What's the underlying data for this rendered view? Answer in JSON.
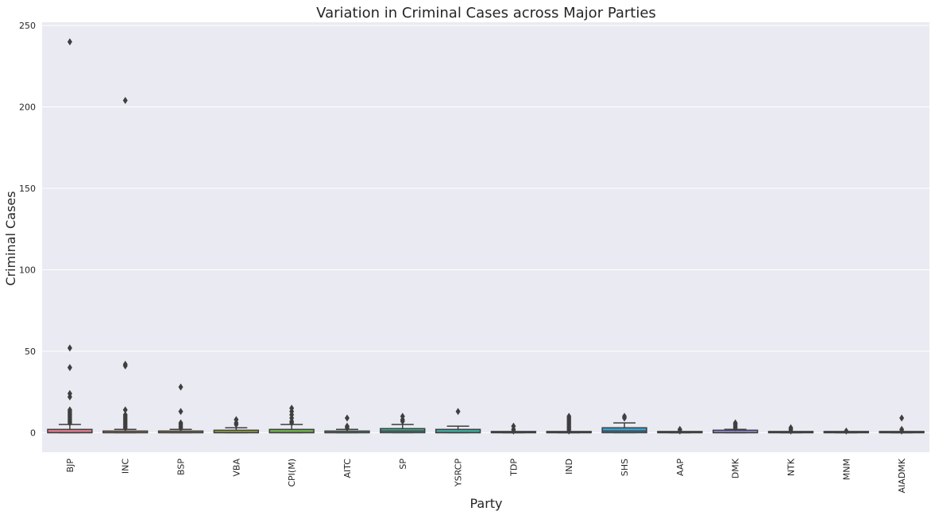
{
  "chart_data": {
    "type": "box",
    "title": "Variation in Criminal Cases across Major Parties",
    "xlabel": "Party",
    "ylabel": "Criminal Cases",
    "ylim": [
      -12,
      252
    ],
    "yticks": [
      0,
      50,
      100,
      150,
      200,
      250
    ],
    "grid": true,
    "background": "#eaeaf2",
    "series": [
      {
        "category": "BJP",
        "q1": 0,
        "median": 0,
        "q3": 2,
        "whisker_low": 0,
        "whisker_high": 5,
        "color": "#e07b8c",
        "outliers": [
          6,
          7,
          8,
          9,
          10,
          11,
          12,
          13,
          14,
          22,
          24,
          40,
          52,
          240
        ]
      },
      {
        "category": "INC",
        "q1": 0,
        "median": 0,
        "q3": 1,
        "whisker_low": 0,
        "whisker_high": 2,
        "color": "#d98a4f",
        "outliers": [
          3,
          4,
          5,
          6,
          7,
          8,
          9,
          10,
          11,
          14,
          41,
          42,
          204
        ]
      },
      {
        "category": "BSP",
        "q1": 0,
        "median": 0,
        "q3": 1,
        "whisker_low": 0,
        "whisker_high": 2,
        "color": "#b59a3c",
        "outliers": [
          3,
          4,
          5,
          6,
          13,
          28
        ]
      },
      {
        "category": "VBA",
        "q1": 0,
        "median": 0,
        "q3": 1.5,
        "whisker_low": 0,
        "whisker_high": 3,
        "color": "#99a53b",
        "outliers": [
          5,
          6,
          8
        ]
      },
      {
        "category": "CPI(M)",
        "q1": 0,
        "median": 0,
        "q3": 2,
        "whisker_low": 0,
        "whisker_high": 5,
        "color": "#6fb14b",
        "outliers": [
          6,
          7,
          9,
          11,
          13,
          15
        ]
      },
      {
        "category": "AITC",
        "q1": 0,
        "median": 0,
        "q3": 1,
        "whisker_low": 0,
        "whisker_high": 2,
        "color": "#4bb27a",
        "outliers": [
          3,
          4,
          9
        ]
      },
      {
        "category": "SP",
        "q1": 0,
        "median": 1,
        "q3": 2.5,
        "whisker_low": 0,
        "whisker_high": 5,
        "color": "#3fae8f",
        "outliers": [
          7,
          8,
          10
        ]
      },
      {
        "category": "YSRCP",
        "q1": 0,
        "median": 0,
        "q3": 2,
        "whisker_low": 0,
        "whisker_high": 4,
        "color": "#3fab9e",
        "outliers": [
          13
        ]
      },
      {
        "category": "TDP",
        "q1": 0,
        "median": 0,
        "q3": 0,
        "whisker_low": 0,
        "whisker_high": 0,
        "color": "#41a8ad",
        "outliers": [
          1,
          2,
          4
        ]
      },
      {
        "category": "IND",
        "q1": 0,
        "median": 0,
        "q3": 0,
        "whisker_low": 0,
        "whisker_high": 0,
        "color": "#45a5bd",
        "outliers": [
          1,
          2,
          3,
          4,
          5,
          6,
          7,
          8,
          9,
          10
        ]
      },
      {
        "category": "SHS",
        "q1": 0,
        "median": 1,
        "q3": 3,
        "whisker_low": 0,
        "whisker_high": 6,
        "color": "#3b9fd0",
        "outliers": [
          9,
          10
        ]
      },
      {
        "category": "AAP",
        "q1": 0,
        "median": 0,
        "q3": 0,
        "whisker_low": 0,
        "whisker_high": 0,
        "color": "#8a9be0",
        "outliers": [
          1,
          2
        ]
      },
      {
        "category": "DMK",
        "q1": 0,
        "median": 0,
        "q3": 1.5,
        "whisker_low": 0,
        "whisker_high": 2,
        "color": "#9b8fe0",
        "outliers": [
          3,
          4,
          5,
          6
        ]
      },
      {
        "category": "NTK",
        "q1": 0,
        "median": 0,
        "q3": 0,
        "whisker_low": 0,
        "whisker_high": 0,
        "color": "#bb83d6",
        "outliers": [
          1,
          2,
          3
        ]
      },
      {
        "category": "MNM",
        "q1": 0,
        "median": 0,
        "q3": 0,
        "whisker_low": 0,
        "whisker_high": 0,
        "color": "#d47fc3",
        "outliers": [
          1
        ]
      },
      {
        "category": "AIADMK",
        "q1": 0,
        "median": 0,
        "q3": 0,
        "whisker_low": 0,
        "whisker_high": 0,
        "color": "#e07fa8",
        "outliers": [
          1,
          2,
          9
        ]
      }
    ]
  }
}
